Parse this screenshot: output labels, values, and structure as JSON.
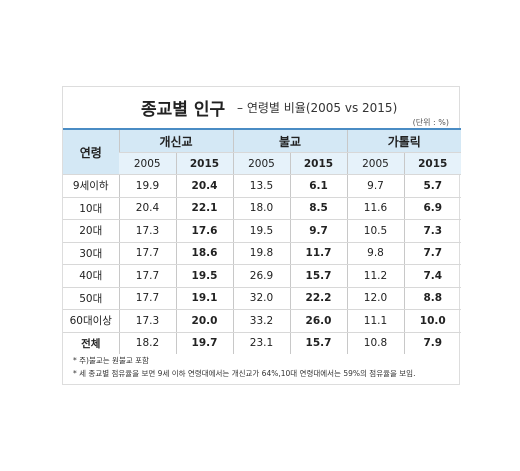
{
  "header": {
    "title": "종교별 인구",
    "subtitle": "– 연령별 비율(2005 vs 2015)",
    "unit": "(단위 : %)"
  },
  "table": {
    "corner": "연령",
    "groups": [
      "개신교",
      "불교",
      "가톨릭"
    ],
    "years": [
      "2005",
      "2015"
    ],
    "rows": [
      [
        "9세이하",
        "19.9",
        "20.4",
        "13.5",
        "6.1",
        "9.7",
        "5.7"
      ],
      [
        "10대",
        "20.4",
        "22.1",
        "18.0",
        "8.5",
        "11.6",
        "6.9"
      ],
      [
        "20대",
        "17.3",
        "17.6",
        "19.5",
        "9.7",
        "10.5",
        "7.3"
      ],
      [
        "30대",
        "17.7",
        "18.6",
        "19.8",
        "11.7",
        "9.8",
        "7.7"
      ],
      [
        "40대",
        "17.7",
        "19.5",
        "26.9",
        "15.7",
        "11.2",
        "7.4"
      ],
      [
        "50대",
        "17.7",
        "19.1",
        "32.0",
        "22.2",
        "12.0",
        "8.8"
      ],
      [
        "60대이상",
        "17.3",
        "20.0",
        "33.2",
        "26.0",
        "11.1",
        "10.0"
      ],
      [
        "전체",
        "18.2",
        "19.7",
        "23.1",
        "15.7",
        "10.8",
        "7.9"
      ]
    ]
  },
  "notes": [
    "* 주)불교는 원불교 포함",
    "* 세 종교별 점유율을 보면 9세 이하 연령대에서는 개신교가 64%,10대 연령대에서는 59%의 점유율을 보임."
  ]
}
